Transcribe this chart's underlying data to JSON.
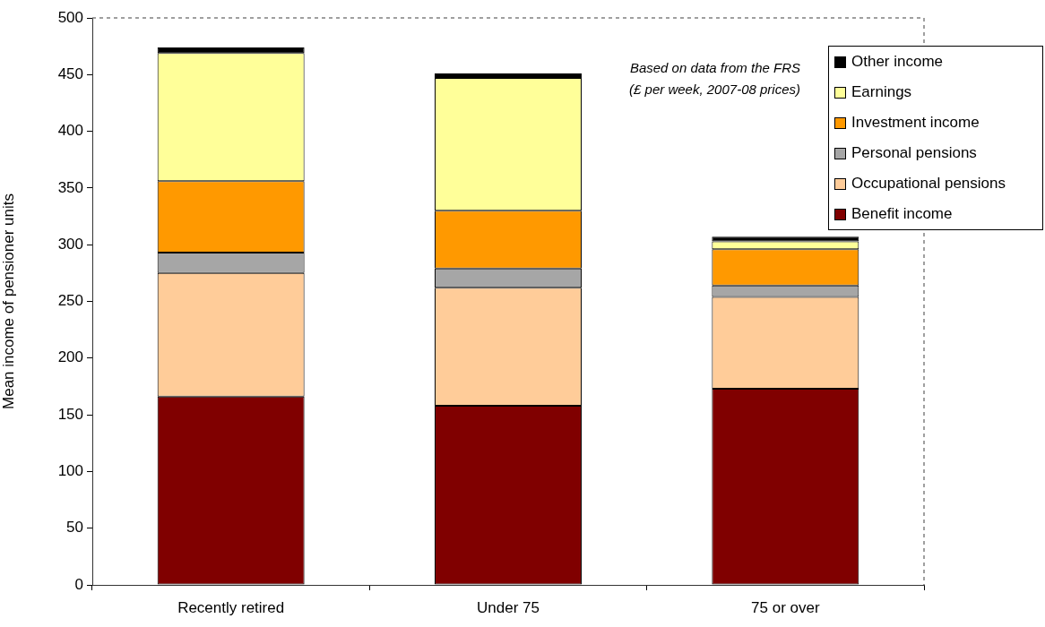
{
  "chart_data": {
    "type": "bar",
    "stacked": true,
    "categories": [
      "Recently retired",
      "Under 75",
      "75 or over"
    ],
    "series": [
      {
        "name": "Benefit income",
        "color": "#800000",
        "values": [
          166,
          158,
          173
        ]
      },
      {
        "name": "Occupational pensions",
        "color": "#ffcc99",
        "values": [
          109,
          104,
          81
        ]
      },
      {
        "name": "Personal pensions",
        "color": "#a6a6a6",
        "values": [
          18,
          17,
          10
        ]
      },
      {
        "name": "Investment income",
        "color": "#ff9900",
        "values": [
          63,
          51,
          32
        ]
      },
      {
        "name": "Earnings",
        "color": "#ffff99",
        "values": [
          113,
          117,
          7
        ]
      },
      {
        "name": "Other income",
        "color": "#000000",
        "values": [
          5,
          4,
          4
        ]
      }
    ],
    "ylabel": "Mean income of pensioner units",
    "ylim": [
      0,
      500
    ],
    "yticks": [
      0,
      50,
      100,
      150,
      200,
      250,
      300,
      350,
      400,
      450,
      500
    ],
    "annotations": [
      "Based on data from the FRS",
      "(£ per week, 2007-08 prices)"
    ],
    "legend": "top right",
    "grid": false
  }
}
